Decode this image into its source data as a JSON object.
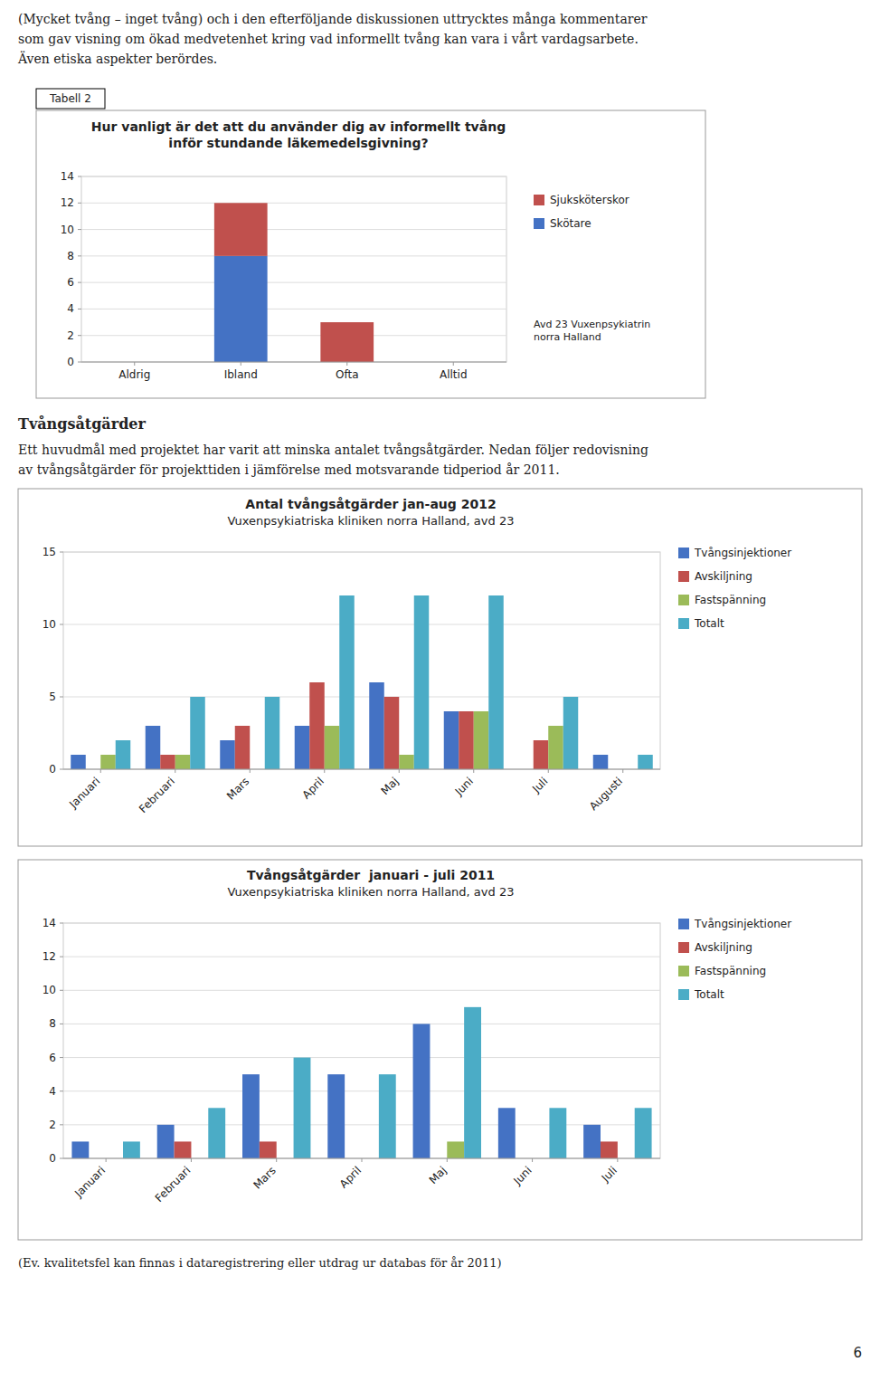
{
  "intro_text": [
    "(Mycket tvång – inget tvång) och i den efterföljande diskussionen uttrycktes många kommentarer",
    "som gav visning om ökad medvetenhet kring vad informellt tvång kan vara i vårt vardagsarbete.",
    "Även etiska aspekter berördes."
  ],
  "chart_data": [
    {
      "type": "bar",
      "stacked": true,
      "title": "Hur vanligt är det att du använder dig av informellt tvång\ninför stundande läkemedelsgivning?",
      "annotations": [
        "Tabell 2",
        "Avd 23 Vuxenpsykiatrin\nnorra Halland"
      ],
      "categories": [
        "Aldrig",
        "Ibland",
        "Ofta",
        "Alltid"
      ],
      "series": [
        {
          "name": "Skötare",
          "color": "#4472c4",
          "values": [
            0,
            8,
            0,
            0
          ]
        },
        {
          "name": "Sjuksköterskor",
          "color": "#c0504d",
          "values": [
            0,
            4,
            3,
            0
          ]
        }
      ],
      "ylim": [
        0,
        14
      ],
      "yticks": [
        0,
        2,
        4,
        6,
        8,
        10,
        12,
        14
      ],
      "grid": true,
      "legend": "right"
    },
    {
      "type": "bar",
      "title": "Antal tvångsåtgärder jan-aug 2012",
      "subtitle": "Vuxenpsykiatriska kliniken norra Halland, avd 23",
      "categories": [
        "Januari",
        "Februari",
        "Mars",
        "April",
        "Maj",
        "Juni",
        "Juli",
        "Augusti"
      ],
      "series": [
        {
          "name": "Tvångsinjektioner",
          "color": "#4472c4",
          "values": [
            1,
            3,
            2,
            3,
            6,
            4,
            0,
            1
          ]
        },
        {
          "name": "Avskiljning",
          "color": "#c0504d",
          "values": [
            0,
            1,
            3,
            6,
            5,
            4,
            2,
            0
          ]
        },
        {
          "name": "Fastspänning",
          "color": "#9bbb59",
          "values": [
            1,
            1,
            0,
            3,
            1,
            4,
            3,
            0
          ]
        },
        {
          "name": "Totalt",
          "color": "#4bacc6",
          "values": [
            2,
            5,
            5,
            12,
            12,
            12,
            5,
            1
          ]
        }
      ],
      "ylim": [
        0,
        15
      ],
      "yticks": [
        0,
        5,
        10,
        15
      ],
      "grid": true,
      "legend": "right"
    },
    {
      "type": "bar",
      "title": "Tvångsåtgärder  januari - juli 2011",
      "subtitle": "Vuxenpsykiatriska kliniken norra Halland, avd 23",
      "categories": [
        "Januari",
        "Februari",
        "Mars",
        "April",
        "Maj",
        "Juni",
        "Juli"
      ],
      "series": [
        {
          "name": "Tvångsinjektioner",
          "color": "#4472c4",
          "values": [
            1,
            2,
            5,
            5,
            8,
            3,
            2
          ]
        },
        {
          "name": "Avskiljning",
          "color": "#c0504d",
          "values": [
            0,
            1,
            1,
            0,
            0,
            0,
            1
          ]
        },
        {
          "name": "Fastspänning",
          "color": "#9bbb59",
          "values": [
            0,
            0,
            0,
            0,
            1,
            0,
            0
          ]
        },
        {
          "name": "Totalt",
          "color": "#4bacc6",
          "values": [
            1,
            3,
            6,
            5,
            9,
            3,
            3
          ]
        }
      ],
      "ylim": [
        0,
        14
      ],
      "yticks": [
        0,
        2,
        4,
        6,
        8,
        10,
        12,
        14
      ],
      "grid": true,
      "legend": "right"
    }
  ],
  "section_title": "Tvångsåtgärder",
  "section_text": [
    "Ett huvudmål med projektet har varit att minska antalet tvångsåtgärder. Nedan följer redovisning",
    "av tvångsåtgärder för projekttiden i jämförelse med motsvarande tidperiod år 2011."
  ],
  "footer_text": "(Ev. kvalitetsfel kan finnas i dataregistrering eller utdrag ur databas för år 2011)",
  "page_number": "6"
}
